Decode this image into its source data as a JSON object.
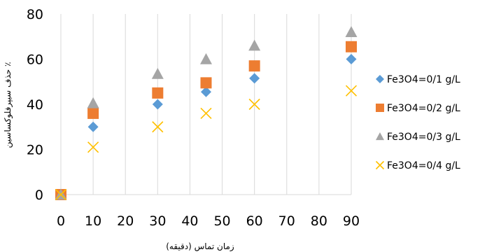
{
  "chart_data": {
    "type": "scatter",
    "title": "",
    "xlabel": "زمان تماس (دقیقه)",
    "ylabel": "حذف سیپرفلوکساسین ٪",
    "xlim": [
      0,
      90
    ],
    "ylim": [
      0,
      80
    ],
    "x_ticks": [
      "0",
      "10",
      "20",
      "30",
      "40",
      "50",
      "60",
      "70",
      "80",
      "90"
    ],
    "y_ticks": [
      "0",
      "20",
      "40",
      "60",
      "80"
    ],
    "grid": "vertical",
    "legend_position": "right",
    "series": [
      {
        "name": "Fe3O4=0/1 g/L",
        "marker": "diamond",
        "color": "#5B9BD5",
        "points": [
          [
            0,
            0
          ],
          [
            10,
            30
          ],
          [
            30,
            40
          ],
          [
            45,
            45.5
          ],
          [
            60,
            51.5
          ],
          [
            90,
            60
          ]
        ]
      },
      {
        "name": "Fe3O4=0/2  g/L",
        "marker": "square",
        "color": "#ED7D31",
        "points": [
          [
            0,
            0
          ],
          [
            10,
            36
          ],
          [
            30,
            45
          ],
          [
            45,
            49.5
          ],
          [
            60,
            57
          ],
          [
            90,
            65.5
          ]
        ]
      },
      {
        "name": "Fe3O4=0/3  g/L",
        "marker": "triangle",
        "color": "#A5A5A5",
        "points": [
          [
            0,
            0
          ],
          [
            10,
            40.5
          ],
          [
            30,
            53.5
          ],
          [
            45,
            60
          ],
          [
            60,
            66
          ],
          [
            90,
            72
          ]
        ]
      },
      {
        "name": "Fe3O4=0/4  g/L",
        "marker": "x",
        "color": "#FFC000",
        "points": [
          [
            0,
            0
          ],
          [
            10,
            21
          ],
          [
            30,
            30
          ],
          [
            45,
            36
          ],
          [
            60,
            40
          ],
          [
            90,
            46
          ]
        ]
      }
    ]
  }
}
